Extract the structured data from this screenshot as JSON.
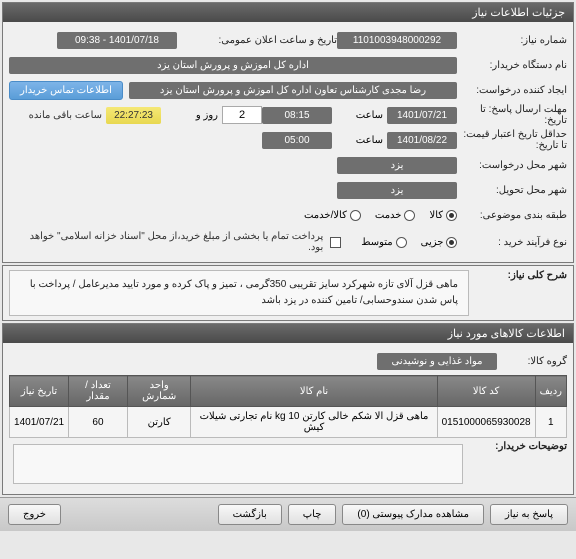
{
  "header": {
    "title": "جزئیات اطلاعات نیاز"
  },
  "fields": {
    "need_no_label": "شماره نیاز:",
    "need_no": "1101003948000292",
    "public_datetime_label": "تاریخ و ساعت اعلان عمومی:",
    "public_datetime": "1401/07/18 - 09:38",
    "buyer_label": "نام دستگاه خریدار:",
    "buyer": "اداره کل اموزش و پرورش استان یزد",
    "creator_label": "ایجاد کننده درخواست:",
    "creator": "رضا مجدی کارشناس تعاون اداره کل اموزش و پرورش استان یزد",
    "contact_btn": "اطلاعات تماس خریدار",
    "deadline_reply_label": "مهلت ارسال پاسخ: تا تاریخ:",
    "deadline_date": "1401/07/21",
    "time_label": "ساعت",
    "deadline_time": "08:15",
    "days_label": "روز و",
    "days": "2",
    "remain_time": "22:27:23",
    "remain_suffix": "ساعت باقی مانده",
    "valid_from_label": "حداقل تاریخ اعتبار قیمت: تا تاریخ:",
    "valid_date": "1401/08/22",
    "valid_time": "05:00",
    "req_city_label": "شهر محل درخواست:",
    "req_city": "یزد",
    "del_city_label": "شهر محل تحویل:",
    "del_city": "یزد",
    "category_label": "طبقه بندی موضوعی:",
    "opt_goods": "کالا",
    "opt_service": "خدمت",
    "opt_goods_service": "کالا/خدمت",
    "process_label": "نوع فرآیند خرید :",
    "opt_partial": "جزیی",
    "opt_medium": "متوسط",
    "payment_note": "پرداخت تمام یا بخشی از مبلغ خرید،از محل \"اسناد خزانه اسلامی\" خواهد بود."
  },
  "summary": {
    "label": "شرح کلی نیاز:",
    "text": "ماهی قزل آلای تازه شهرکرد سایز تقریبی 350گرمی ، تمیز و پاک کرده و مورد تایید مدیرعامل / پرداخت با پاس شدن سندوحسابی/ تامین کننده در یزد باشد"
  },
  "items": {
    "panel_title": "اطلاعات کالاهای مورد نیاز",
    "group_label": "گروه کالا:",
    "group_value": "مواد غذایی و نوشیدنی",
    "cols": [
      "ردیف",
      "کد کالا",
      "نام کالا",
      "واحد شمارش",
      "تعداد / مقدار",
      "تاریخ نیاز"
    ],
    "rows": [
      [
        "1",
        "0151000065930028",
        "ماهی قزل الا شکم خالی کارتن 10 kg نام تجارتی شیلات کیش",
        "کارتن",
        "60",
        "1401/07/21"
      ]
    ]
  },
  "buyer_notes": {
    "label": "توضیحات خریدار:"
  },
  "footer": {
    "reply": "پاسخ به نیاز",
    "attach": "مشاهده مدارک پیوستی (0)",
    "print": "چاپ",
    "back": "بازگشت",
    "exit": "خروج"
  }
}
